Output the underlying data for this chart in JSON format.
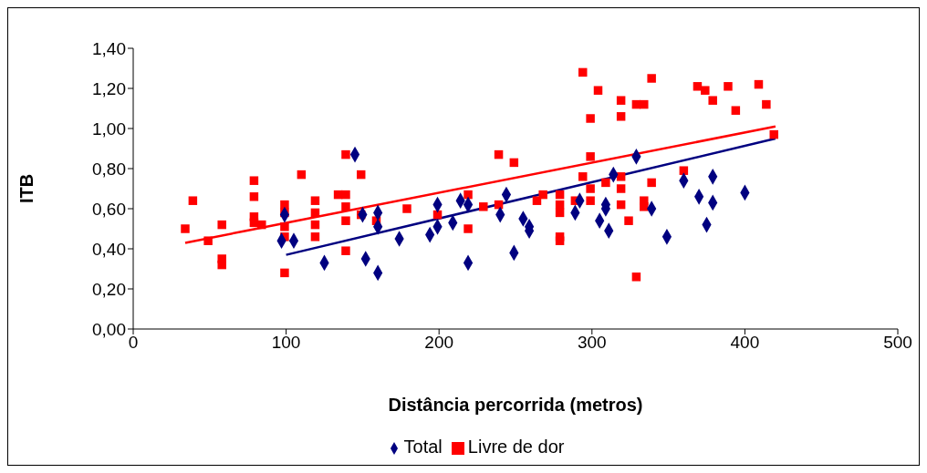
{
  "chart_data": {
    "type": "scatter",
    "xlabel": "Distância percorrida (metros)",
    "ylabel": "ITB",
    "xlim": [
      0,
      500
    ],
    "xticks": [
      0,
      100,
      200,
      300,
      400,
      500
    ],
    "ylim": [
      0,
      1.4
    ],
    "yticks": [
      {
        "value": 0,
        "label": "0,00"
      },
      {
        "value": 0.2,
        "label": "0,20"
      },
      {
        "value": 0.4,
        "label": "0,40"
      },
      {
        "value": 0.6,
        "label": "0,60"
      },
      {
        "value": 0.8,
        "label": "0,80"
      },
      {
        "value": 1,
        "label": "1,00"
      },
      {
        "value": 1.2,
        "label": "1,20"
      },
      {
        "value": 1.4,
        "label": "1,40"
      }
    ],
    "grid": false,
    "legend": "bottom",
    "series": [
      {
        "name": "Total",
        "color": "#000080",
        "marker": "diamond",
        "x": [
          99,
          97,
          105,
          125,
          145,
          150,
          152,
          160,
          160,
          160,
          174,
          194,
          199,
          199,
          209,
          214,
          219,
          219,
          240,
          244,
          249,
          255,
          259,
          259,
          289,
          292,
          305,
          309,
          309,
          311,
          314,
          329,
          339,
          349,
          360,
          370,
          375,
          379,
          379,
          400
        ],
        "values": [
          0.57,
          0.44,
          0.44,
          0.33,
          0.87,
          0.57,
          0.35,
          0.58,
          0.51,
          0.28,
          0.45,
          0.47,
          0.62,
          0.51,
          0.53,
          0.64,
          0.62,
          0.33,
          0.57,
          0.67,
          0.38,
          0.55,
          0.51,
          0.49,
          0.58,
          0.64,
          0.54,
          0.62,
          0.6,
          0.49,
          0.77,
          0.86,
          0.6,
          0.46,
          0.74,
          0.66,
          0.52,
          0.76,
          0.63,
          0.68
        ]
      },
      {
        "name": "Livre de dor",
        "color": "#ff0000",
        "marker": "square",
        "x": [
          34,
          39,
          49,
          58,
          58,
          58,
          79,
          79,
          79,
          79,
          84,
          99,
          99,
          99,
          99,
          99,
          110,
          119,
          119,
          119,
          119,
          134,
          139,
          139,
          139,
          139,
          139,
          149,
          149,
          159,
          179,
          199,
          219,
          219,
          229,
          239,
          239,
          249,
          264,
          268,
          279,
          279,
          279,
          279,
          279,
          289,
          294,
          294,
          299,
          299,
          299,
          299,
          304,
          309,
          319,
          319,
          319,
          319,
          319,
          324,
          329,
          329,
          334,
          334,
          334,
          339,
          339,
          360,
          369,
          374,
          379,
          389,
          394,
          409,
          414,
          419
        ],
        "values": [
          0.5,
          0.64,
          0.44,
          0.52,
          0.35,
          0.32,
          0.74,
          0.66,
          0.56,
          0.53,
          0.52,
          0.62,
          0.58,
          0.51,
          0.46,
          0.28,
          0.77,
          0.64,
          0.58,
          0.52,
          0.46,
          0.67,
          0.87,
          0.67,
          0.61,
          0.54,
          0.39,
          0.77,
          0.57,
          0.54,
          0.6,
          0.57,
          0.67,
          0.5,
          0.61,
          0.87,
          0.62,
          0.83,
          0.64,
          0.67,
          0.67,
          0.62,
          0.58,
          0.46,
          0.44,
          0.64,
          1.28,
          0.76,
          1.05,
          0.86,
          0.7,
          0.64,
          1.19,
          0.73,
          1.14,
          1.06,
          0.76,
          0.7,
          0.62,
          0.54,
          1.12,
          0.26,
          1.12,
          0.64,
          0.61,
          1.25,
          0.73,
          0.79,
          1.21,
          1.19,
          1.14,
          1.21,
          1.09,
          1.22,
          1.12,
          0.97
        ]
      },
      {
        "type": "line",
        "color": "#000080",
        "x": [
          100,
          420
        ],
        "values": [
          0.37,
          0.95
        ]
      },
      {
        "type": "line",
        "color": "#ff0000",
        "x": [
          34,
          420
        ],
        "values": [
          0.43,
          1.01
        ]
      }
    ]
  }
}
